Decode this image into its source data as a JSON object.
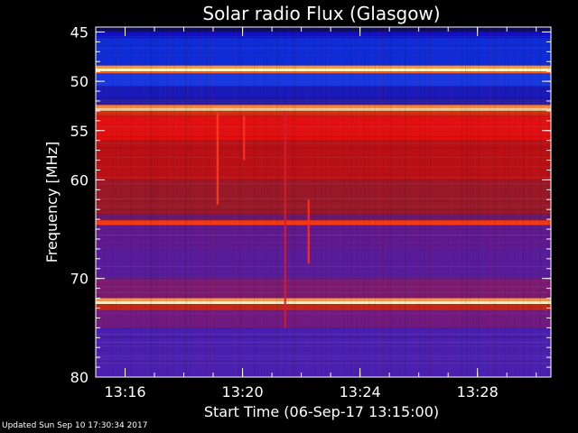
{
  "chart_data": {
    "type": "heatmap",
    "title": "Solar radio Flux (Glasgow)",
    "xlabel": "Start Time (06-Sep-17 13:15:00)",
    "ylabel": "Frequency [MHz]",
    "x_unit": "minutes after 13:15:00",
    "xlim": [
      0,
      15.5
    ],
    "ylim": [
      80,
      44.5
    ],
    "x_ticks": [
      {
        "label": "13:16",
        "value": 1
      },
      {
        "label": "13:20",
        "value": 5
      },
      {
        "label": "13:24",
        "value": 9
      },
      {
        "label": "13:28",
        "value": 13
      }
    ],
    "y_ticks": [
      {
        "label": "45",
        "value": 45
      },
      {
        "label": "50",
        "value": 50
      },
      {
        "label": "55",
        "value": 55
      },
      {
        "label": "60",
        "value": 60
      },
      {
        "label": "70",
        "value": 70
      },
      {
        "label": "80",
        "value": 80
      }
    ],
    "frequency_bands": [
      {
        "from": 44.5,
        "to": 45.0,
        "color": "#0a0a60"
      },
      {
        "from": 45.0,
        "to": 45.6,
        "color": "#1010c8"
      },
      {
        "from": 45.6,
        "to": 48.4,
        "color": "#0e2cd8"
      },
      {
        "from": 48.4,
        "to": 48.7,
        "color": "#ff9a30"
      },
      {
        "from": 48.7,
        "to": 49.0,
        "color": "#fff4c0"
      },
      {
        "from": 49.0,
        "to": 49.2,
        "color": "#ff6020"
      },
      {
        "from": 49.2,
        "to": 50.5,
        "color": "#1838e0"
      },
      {
        "from": 50.5,
        "to": 51.8,
        "color": "#1a1ab8"
      },
      {
        "from": 51.8,
        "to": 52.4,
        "color": "#2a20a8"
      },
      {
        "from": 52.4,
        "to": 52.7,
        "color": "#ff8030"
      },
      {
        "from": 52.7,
        "to": 53.0,
        "color": "#ffd8a0"
      },
      {
        "from": 53.0,
        "to": 53.5,
        "color": "#d83010"
      },
      {
        "from": 53.5,
        "to": 56.0,
        "color": "#e01010"
      },
      {
        "from": 56.0,
        "to": 60.0,
        "color": "#b81014"
      },
      {
        "from": 60.0,
        "to": 63.5,
        "color": "#981828"
      },
      {
        "from": 63.5,
        "to": 64.1,
        "color": "#6a1a70"
      },
      {
        "from": 64.1,
        "to": 64.6,
        "color": "#ff3a10"
      },
      {
        "from": 64.6,
        "to": 67.0,
        "color": "#601a90"
      },
      {
        "from": 67.0,
        "to": 70.0,
        "color": "#581c9a"
      },
      {
        "from": 70.0,
        "to": 72.0,
        "color": "#7a1a70"
      },
      {
        "from": 72.0,
        "to": 72.3,
        "color": "#ff9a40"
      },
      {
        "from": 72.3,
        "to": 72.6,
        "color": "#ffe8c0"
      },
      {
        "from": 72.6,
        "to": 73.2,
        "color": "#c02818"
      },
      {
        "from": 73.2,
        "to": 75.0,
        "color": "#701a80"
      },
      {
        "from": 75.0,
        "to": 80.0,
        "color": "#4a20b0"
      }
    ],
    "bright_features": [
      {
        "x": 4.15,
        "from": 53.2,
        "to": 62.5,
        "color": "#ff4020"
      },
      {
        "x": 5.05,
        "from": 53.5,
        "to": 58.0,
        "color": "#ff3020"
      },
      {
        "x": 6.45,
        "from": 53.0,
        "to": 75.0,
        "color": "#d02030"
      },
      {
        "x": 7.25,
        "from": 62.0,
        "to": 68.5,
        "color": "#ff3020"
      }
    ],
    "grid": false,
    "colors": {
      "background": "#000000",
      "axes": "#ffffff",
      "text": "#ffffff"
    }
  },
  "footer": {
    "updated_text": "Updated Sun Sep 10 17:30:34 2017"
  }
}
